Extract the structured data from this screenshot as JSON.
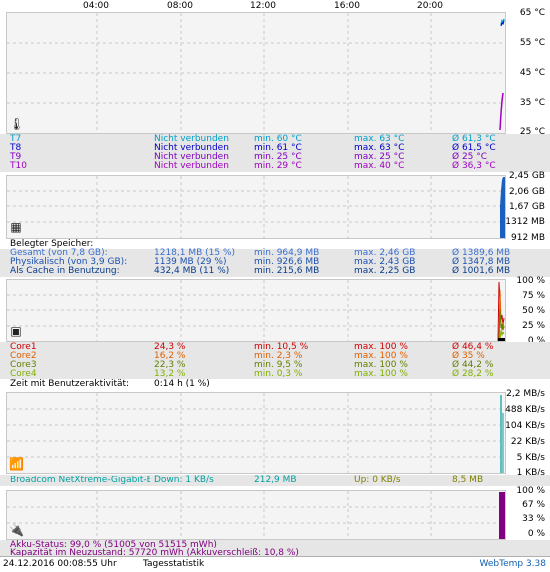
{
  "time_axis": [
    "04:00",
    "08:00",
    "12:00",
    "16:00",
    "20:00"
  ],
  "panels": {
    "temperature": {
      "y_labels": [
        "65 °C",
        "55 °C",
        "45 °C",
        "35 °C",
        "25 °C"
      ],
      "icon": "thermometer-icon",
      "rows": [
        {
          "name": "T7",
          "status": "Nicht verbunden",
          "min": "min. 60 °C",
          "max": "max. 63 °C",
          "avg": "Ø 61,3 °C",
          "color": "#00a0c8"
        },
        {
          "name": "T8",
          "status": "Nicht verbunden",
          "min": "min. 61 °C",
          "max": "max. 63 °C",
          "avg": "Ø 61,5 °C",
          "color": "#0000c8"
        },
        {
          "name": "T9",
          "status": "Nicht verbunden",
          "min": "min. 25 °C",
          "max": "max. 25 °C",
          "avg": "Ø 25 °C",
          "color": "#8000c0"
        },
        {
          "name": "T10",
          "status": "Nicht verbunden",
          "min": "min. 29 °C",
          "max": "max. 40 °C",
          "avg": "Ø 36,3 °C",
          "color": "#a000c0"
        }
      ]
    },
    "memory": {
      "y_labels": [
        "2,45 GB",
        "2,06 GB",
        "1,67 GB",
        "1312 MB",
        "912 MB"
      ],
      "icon": "memory-chip-icon",
      "heading": "Belegter Speicher:",
      "rows": [
        {
          "name": "Gesamt (von 7,8 GB):",
          "value": "1218,1 MB (15 %)",
          "min": "min. 964,9 MB",
          "max": "max. 2,46 GB",
          "avg": "Ø 1389,6 MB",
          "color": "#3a6fd0"
        },
        {
          "name": "Physikalisch (von 3,9 GB):",
          "value": "1139 MB (29 %)",
          "min": "min. 926,6 MB",
          "max": "max. 2,43 GB",
          "avg": "Ø 1347,8 MB",
          "color": "#1a50b0"
        },
        {
          "name": "Als Cache in Benutzung:",
          "value": "432,4 MB (11 %)",
          "min": "min. 215,6 MB",
          "max": "max. 2,25 GB",
          "avg": "Ø 1001,6 MB",
          "color": "#0a3c8c"
        }
      ]
    },
    "cpu": {
      "y_labels": [
        "100 %",
        "75 %",
        "50 %",
        "25 %",
        "0 %"
      ],
      "icon": "cpu-icon",
      "rows": [
        {
          "name": "Core1",
          "value": "24,3 %",
          "min": "min. 10,5 %",
          "max": "max. 100 %",
          "avg": "Ø 46,4 %",
          "color": "#d00000"
        },
        {
          "name": "Core2",
          "value": "16,2 %",
          "min": "min. 2,3 %",
          "max": "max. 100 %",
          "avg": "Ø 35 %",
          "color": "#e06000"
        },
        {
          "name": "Core3",
          "value": "22,3 %",
          "min": "min. 9,5 %",
          "max": "max. 100 %",
          "avg": "Ø 44,2 %",
          "color": "#608000"
        },
        {
          "name": "Core4",
          "value": "13,2 %",
          "min": "min. 0,3 %",
          "max": "max. 100 %",
          "avg": "Ø 28,2 %",
          "color": "#80b000"
        }
      ],
      "activity_label": "Zeit mit Benutzeraktivität:",
      "activity_value": "0:14 h (1 %)"
    },
    "network": {
      "y_labels": [
        "2,2 MB/s",
        "488 KB/s",
        "104 KB/s",
        "22 KB/s",
        "5 KB/s",
        "1 KB/s"
      ],
      "icon": "network-antenna-icon",
      "adapter": "Broadcom NetXtreme-Gigabit-Eth",
      "down": "Down: 1 KB/s",
      "down_total": "212,9 MB",
      "up": "Up: 0 KB/s",
      "up_total": "8,5 MB",
      "down_color": "#00a0a0",
      "up_color": "#808000"
    },
    "battery": {
      "y_labels": [
        "100 %",
        "67 %",
        "33 %",
        "0 %"
      ],
      "icon": "battery-plug-icon",
      "status": "Akku-Status: 99,0 % (51005 von 51515 mWh)",
      "capacity": "Kapazität im Neuzustand: 57720 mWh (Akkuverschleiß: 10,8 %)",
      "color": "#800080"
    }
  },
  "footer": {
    "datetime": "24.12.2016 00:08:55 Uhr",
    "mode": "Tagesstatistik",
    "app": "WebTemp 3.38"
  }
}
